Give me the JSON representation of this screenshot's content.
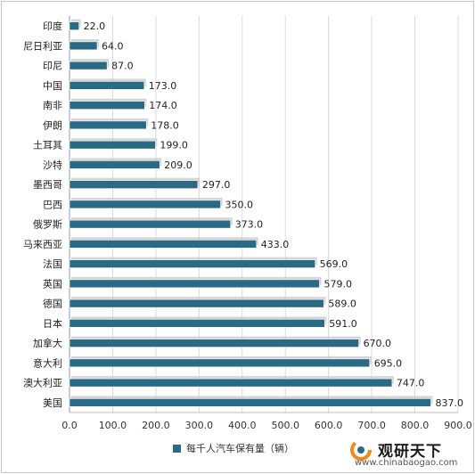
{
  "chart_data": {
    "type": "bar",
    "orientation": "horizontal",
    "categories": [
      "印度",
      "尼日利亚",
      "印尼",
      "中国",
      "南非",
      "伊朗",
      "土耳其",
      "沙特",
      "墨西哥",
      "巴西",
      "俄罗斯",
      "马来西亚",
      "法国",
      "英国",
      "德国",
      "日本",
      "加拿大",
      "意大利",
      "澳大利亚",
      "美国"
    ],
    "series": [
      {
        "name": "每千人汽车保有量（辆）",
        "values": [
          22.0,
          64.0,
          87.0,
          173.0,
          174.0,
          178.0,
          199.0,
          209.0,
          297.0,
          350.0,
          373.0,
          433.0,
          569.0,
          579.0,
          589.0,
          591.0,
          670.0,
          695.0,
          747.0,
          837.0
        ],
        "value_labels": [
          "22.0",
          "64.0",
          "87.0",
          "173.0",
          "174.0",
          "178.0",
          "199.0",
          "209.0",
          "297.0",
          "350.0",
          "373.0",
          "433.0",
          "569.0",
          "579.0",
          "589.0",
          "591.0",
          "670.0",
          "695.0",
          "747.0",
          "837.0"
        ]
      }
    ],
    "xlim": [
      0,
      900
    ],
    "xticks": [
      "0.0",
      "100.0",
      "200.0",
      "300.0",
      "400.0",
      "500.0",
      "600.0",
      "700.0",
      "800.0",
      "900.0"
    ],
    "grid": true,
    "legend_position": "bottom",
    "bar_color": "#2a6a85"
  },
  "legend": {
    "label": "每千人汽车保有量（辆）"
  },
  "brand": {
    "name": "观研天下",
    "url": "www.chinabaogao.com",
    "logo_icon": "circular-arrow-logo"
  }
}
